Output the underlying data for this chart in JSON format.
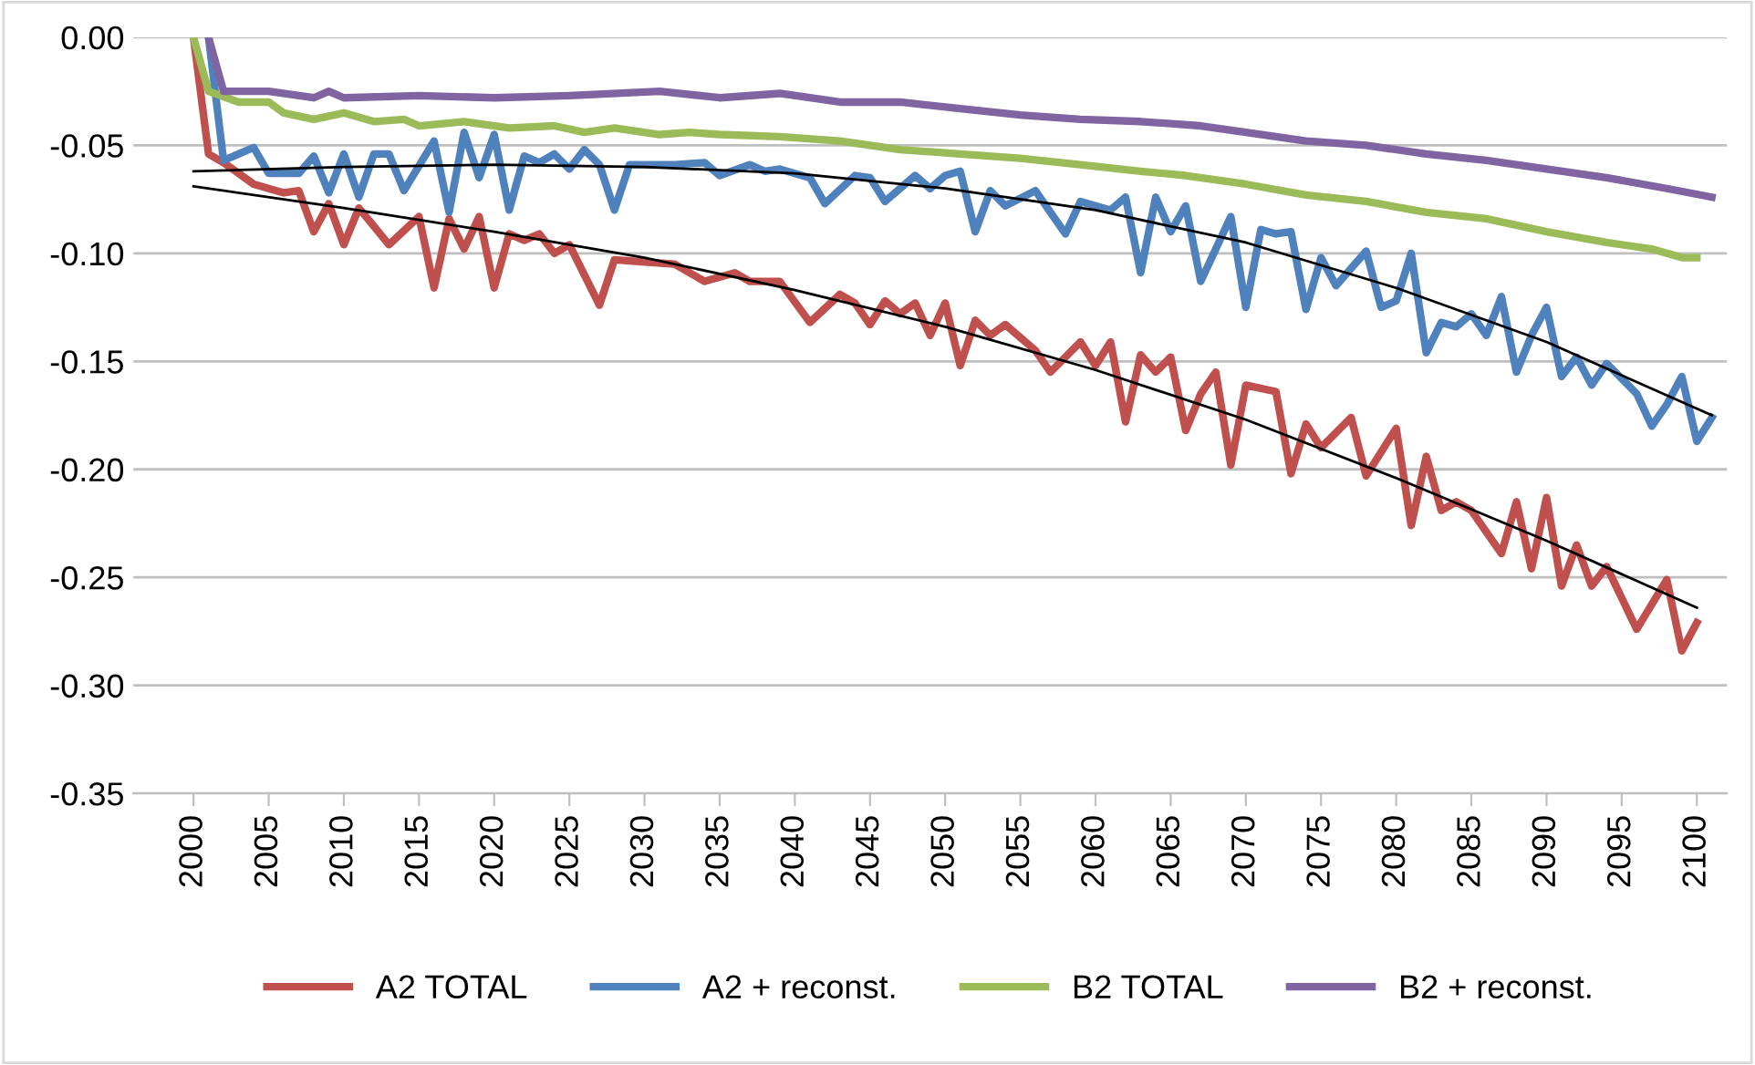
{
  "chart_data": {
    "type": "line",
    "xlim": [
      1996,
      2102
    ],
    "xticks": [
      2000,
      2005,
      2010,
      2015,
      2020,
      2025,
      2030,
      2035,
      2040,
      2045,
      2050,
      2055,
      2060,
      2065,
      2070,
      2075,
      2080,
      2085,
      2090,
      2095,
      2100
    ],
    "ylim": [
      -0.35,
      0.0
    ],
    "yticks": [
      {
        "value": 0.0,
        "label": "0.00"
      },
      {
        "value": -0.05,
        "label": "-0.05"
      },
      {
        "value": -0.1,
        "label": "-0.10"
      },
      {
        "value": -0.15,
        "label": "-0.15"
      },
      {
        "value": -0.2,
        "label": "-0.20"
      },
      {
        "value": -0.25,
        "label": "-0.25"
      },
      {
        "value": -0.3,
        "label": "-0.30"
      },
      {
        "value": -0.35,
        "label": "-0.35"
      }
    ],
    "grid": "y",
    "legend": "bottom",
    "marker": "none",
    "line_style": "solid",
    "series": [
      {
        "name": "A2 TOTAL",
        "color": "#c0504d",
        "x": [
          2000,
          2001,
          2002,
          2004,
          2006,
          2007,
          2008,
          2009,
          2010,
          2011,
          2013,
          2015,
          2016,
          2017,
          2018,
          2019,
          2020,
          2021,
          2022,
          2023,
          2024,
          2025,
          2027,
          2028,
          2030,
          2032,
          2034,
          2036,
          2037,
          2039,
          2041,
          2043,
          2044,
          2045,
          2046,
          2047,
          2048,
          2049,
          2050,
          2051,
          2052,
          2053,
          2054,
          2056,
          2057,
          2059,
          2060,
          2061,
          2062,
          2063,
          2064,
          2065,
          2066,
          2067,
          2068,
          2069,
          2070,
          2072,
          2073,
          2074,
          2075,
          2077,
          2078,
          2080,
          2081,
          2082,
          2083,
          2084,
          2085,
          2087,
          2088,
          2089,
          2090,
          2091,
          2092,
          2093,
          2094,
          2096,
          2098,
          2099,
          2100
        ],
        "values": [
          0.0,
          -0.054,
          -0.058,
          -0.068,
          -0.072,
          -0.071,
          -0.09,
          -0.077,
          -0.096,
          -0.079,
          -0.096,
          -0.083,
          -0.116,
          -0.084,
          -0.098,
          -0.083,
          -0.116,
          -0.091,
          -0.094,
          -0.091,
          -0.1,
          -0.096,
          -0.124,
          -0.103,
          -0.104,
          -0.105,
          -0.113,
          -0.109,
          -0.113,
          -0.113,
          -0.132,
          -0.119,
          -0.123,
          -0.133,
          -0.122,
          -0.128,
          -0.123,
          -0.138,
          -0.123,
          -0.152,
          -0.131,
          -0.138,
          -0.133,
          -0.145,
          -0.155,
          -0.141,
          -0.152,
          -0.141,
          -0.178,
          -0.147,
          -0.155,
          -0.148,
          -0.182,
          -0.165,
          -0.155,
          -0.198,
          -0.161,
          -0.164,
          -0.202,
          -0.179,
          -0.19,
          -0.176,
          -0.203,
          -0.181,
          -0.226,
          -0.194,
          -0.219,
          -0.215,
          -0.219,
          -0.239,
          -0.215,
          -0.246,
          -0.213,
          -0.254,
          -0.235,
          -0.254,
          -0.245,
          -0.274,
          -0.251,
          -0.284,
          -0.271
        ]
      },
      {
        "name": "A2 + reconst.",
        "color": "#4f81bd",
        "x": [
          2001,
          2002,
          2004,
          2005,
          2007,
          2008,
          2009,
          2010,
          2011,
          2012,
          2013,
          2014,
          2016,
          2017,
          2018,
          2019,
          2020,
          2021,
          2022,
          2023,
          2024,
          2025,
          2026,
          2027,
          2028,
          2029,
          2032,
          2034,
          2035,
          2037,
          2038,
          2039,
          2041,
          2042,
          2044,
          2045,
          2046,
          2048,
          2049,
          2050,
          2051,
          2052,
          2053,
          2054,
          2056,
          2058,
          2059,
          2061,
          2062,
          2063,
          2064,
          2065,
          2066,
          2067,
          2069,
          2070,
          2071,
          2072,
          2073,
          2074,
          2075,
          2076,
          2078,
          2079,
          2080,
          2081,
          2082,
          2083,
          2084,
          2085,
          2086,
          2087,
          2088,
          2089,
          2090,
          2091,
          2092,
          2093,
          2094,
          2096,
          2097,
          2098,
          2099,
          2100,
          2101
        ],
        "values": [
          0.0,
          -0.057,
          -0.051,
          -0.063,
          -0.063,
          -0.055,
          -0.072,
          -0.054,
          -0.074,
          -0.054,
          -0.054,
          -0.071,
          -0.048,
          -0.081,
          -0.044,
          -0.065,
          -0.045,
          -0.08,
          -0.055,
          -0.058,
          -0.054,
          -0.061,
          -0.052,
          -0.059,
          -0.08,
          -0.059,
          -0.059,
          -0.058,
          -0.064,
          -0.059,
          -0.062,
          -0.061,
          -0.065,
          -0.077,
          -0.064,
          -0.065,
          -0.076,
          -0.064,
          -0.07,
          -0.064,
          -0.062,
          -0.09,
          -0.071,
          -0.078,
          -0.071,
          -0.091,
          -0.076,
          -0.08,
          -0.074,
          -0.109,
          -0.074,
          -0.09,
          -0.078,
          -0.113,
          -0.083,
          -0.125,
          -0.089,
          -0.091,
          -0.09,
          -0.126,
          -0.102,
          -0.115,
          -0.099,
          -0.125,
          -0.122,
          -0.1,
          -0.146,
          -0.132,
          -0.134,
          -0.128,
          -0.138,
          -0.12,
          -0.155,
          -0.138,
          -0.125,
          -0.157,
          -0.148,
          -0.161,
          -0.151,
          -0.165,
          -0.18,
          -0.17,
          -0.157,
          -0.187,
          -0.176
        ]
      },
      {
        "name": "B2 TOTAL",
        "color": "#9bbb59",
        "x": [
          2000,
          2001,
          2003,
          2005,
          2006,
          2008,
          2010,
          2012,
          2014,
          2015,
          2018,
          2021,
          2024,
          2026,
          2028,
          2031,
          2033,
          2035,
          2039,
          2043,
          2047,
          2051,
          2055,
          2059,
          2063,
          2066,
          2070,
          2074,
          2078,
          2082,
          2086,
          2090,
          2094,
          2097,
          2099,
          2100
        ],
        "values": [
          0.0,
          -0.025,
          -0.03,
          -0.03,
          -0.035,
          -0.038,
          -0.035,
          -0.039,
          -0.038,
          -0.041,
          -0.039,
          -0.042,
          -0.041,
          -0.044,
          -0.042,
          -0.045,
          -0.044,
          -0.045,
          -0.046,
          -0.048,
          -0.052,
          -0.054,
          -0.056,
          -0.059,
          -0.062,
          -0.064,
          -0.068,
          -0.073,
          -0.076,
          -0.081,
          -0.084,
          -0.09,
          -0.095,
          -0.098,
          -0.102,
          -0.102
        ]
      },
      {
        "name": "B2 + reconst.",
        "color": "#8064a2",
        "x": [
          2001,
          2002,
          2005,
          2008,
          2009,
          2010,
          2015,
          2020,
          2025,
          2031,
          2035,
          2039,
          2043,
          2047,
          2051,
          2055,
          2059,
          2063,
          2067,
          2070,
          2074,
          2078,
          2082,
          2086,
          2090,
          2094,
          2098,
          2101
        ],
        "values": [
          0.0,
          -0.025,
          -0.025,
          -0.028,
          -0.025,
          -0.028,
          -0.027,
          -0.028,
          -0.027,
          -0.025,
          -0.028,
          -0.026,
          -0.03,
          -0.03,
          -0.033,
          -0.036,
          -0.038,
          -0.039,
          -0.041,
          -0.044,
          -0.048,
          -0.05,
          -0.054,
          -0.057,
          -0.061,
          -0.065,
          -0.07,
          -0.074
        ]
      },
      {
        "type": "line",
        "color": "#000000",
        "x": [
          2000,
          2010,
          2020,
          2030,
          2040,
          2050,
          2060,
          2070,
          2080,
          2090,
          2100
        ],
        "values": [
          -0.069,
          -0.079,
          -0.09,
          -0.102,
          -0.117,
          -0.134,
          -0.154,
          -0.177,
          -0.204,
          -0.233,
          -0.264
        ]
      },
      {
        "type": "line",
        "color": "#000000",
        "x": [
          2000,
          2010,
          2020,
          2030,
          2040,
          2050,
          2060,
          2070,
          2080,
          2090,
          2101
        ],
        "values": [
          -0.062,
          -0.06,
          -0.059,
          -0.06,
          -0.063,
          -0.07,
          -0.08,
          -0.095,
          -0.116,
          -0.141,
          -0.175
        ]
      }
    ]
  }
}
